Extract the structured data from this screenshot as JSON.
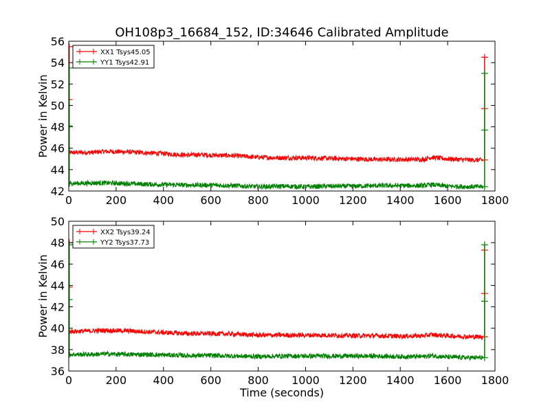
{
  "figure": {
    "title": "OH108p3_16684_152, ID:34646 Calibrated Amplitude"
  },
  "chart_data": [
    {
      "type": "line",
      "title": "OH108p3_16684_152, ID:34646 Calibrated Amplitude",
      "xlabel": "",
      "ylabel": "Power in Kelvin",
      "xlim": [
        0,
        1800
      ],
      "ylim": [
        42,
        56
      ],
      "xticks": [
        "0",
        "200",
        "400",
        "600",
        "800",
        "1000",
        "1200",
        "1400",
        "1600",
        "1800"
      ],
      "yticks": [
        "42",
        "44",
        "46",
        "48",
        "50",
        "52",
        "54",
        "56"
      ],
      "grid": false,
      "legend": "top-left",
      "series": [
        {
          "name": "XX1 Tsys45.05",
          "color": "#ff0000",
          "x": [
            0,
            100,
            150,
            250,
            300,
            400,
            500,
            550,
            600,
            700,
            800,
            900,
            1000,
            1100,
            1200,
            1300,
            1400,
            1500,
            1530,
            1600,
            1700,
            1750
          ],
          "y": [
            45.6,
            45.6,
            45.7,
            45.65,
            45.6,
            45.5,
            45.35,
            45.4,
            45.35,
            45.3,
            45.15,
            45.1,
            45.1,
            45.05,
            45.0,
            44.95,
            44.95,
            44.95,
            45.15,
            45.0,
            44.9,
            44.9
          ],
          "spikes": [
            {
              "x": 2,
              "y_top": 55.5
            },
            {
              "x": 1756,
              "y_top": 54.5
            }
          ]
        },
        {
          "name": "YY1 Tsys42.91",
          "color": "#008000",
          "x": [
            0,
            100,
            150,
            250,
            300,
            400,
            500,
            550,
            600,
            700,
            800,
            900,
            1000,
            1100,
            1200,
            1300,
            1400,
            1500,
            1530,
            1600,
            1700,
            1750
          ],
          "y": [
            42.7,
            42.75,
            42.75,
            42.7,
            42.65,
            42.6,
            42.55,
            42.55,
            42.55,
            42.5,
            42.4,
            42.45,
            42.4,
            42.45,
            42.45,
            42.5,
            42.5,
            42.5,
            42.6,
            42.45,
            42.4,
            42.4
          ],
          "spikes": [
            {
              "x": 2,
              "y_top": 53.5
            },
            {
              "x": 1756,
              "y_top": 53.0
            }
          ]
        }
      ]
    },
    {
      "type": "line",
      "title": "",
      "xlabel": "Time (seconds)",
      "ylabel": "Power in Kelvin",
      "xlim": [
        0,
        1800
      ],
      "ylim": [
        36,
        50
      ],
      "xticks": [
        "0",
        "200",
        "400",
        "600",
        "800",
        "1000",
        "1200",
        "1400",
        "1600",
        "1800"
      ],
      "yticks": [
        "36",
        "38",
        "40",
        "42",
        "44",
        "46",
        "48",
        "50"
      ],
      "grid": false,
      "legend": "top-left",
      "series": [
        {
          "name": "XX2 Tsys39.24",
          "color": "#ff0000",
          "x": [
            0,
            100,
            150,
            250,
            300,
            400,
            500,
            550,
            600,
            700,
            800,
            900,
            1000,
            1100,
            1200,
            1300,
            1400,
            1500,
            1530,
            1600,
            1700,
            1750
          ],
          "y": [
            39.7,
            39.75,
            39.8,
            39.75,
            39.7,
            39.6,
            39.5,
            39.5,
            39.5,
            39.45,
            39.35,
            39.35,
            39.35,
            39.35,
            39.3,
            39.3,
            39.25,
            39.3,
            39.4,
            39.3,
            39.2,
            39.2
          ],
          "spikes": [
            {
              "x": 2,
              "y_top": 48.0
            },
            {
              "x": 1756,
              "y_top": 47.3
            }
          ]
        },
        {
          "name": "YY2 Tsys37.73",
          "color": "#008000",
          "x": [
            0,
            100,
            150,
            250,
            300,
            400,
            500,
            550,
            600,
            700,
            800,
            900,
            1000,
            1100,
            1200,
            1300,
            1400,
            1500,
            1530,
            1600,
            1700,
            1750
          ],
          "y": [
            37.55,
            37.55,
            37.6,
            37.55,
            37.55,
            37.5,
            37.45,
            37.45,
            37.45,
            37.4,
            37.35,
            37.4,
            37.4,
            37.4,
            37.4,
            37.4,
            37.35,
            37.35,
            37.45,
            37.3,
            37.25,
            37.25
          ],
          "spikes": [
            {
              "x": 2,
              "y_top": 47.8
            },
            {
              "x": 1756,
              "y_top": 47.8
            }
          ]
        }
      ]
    }
  ]
}
